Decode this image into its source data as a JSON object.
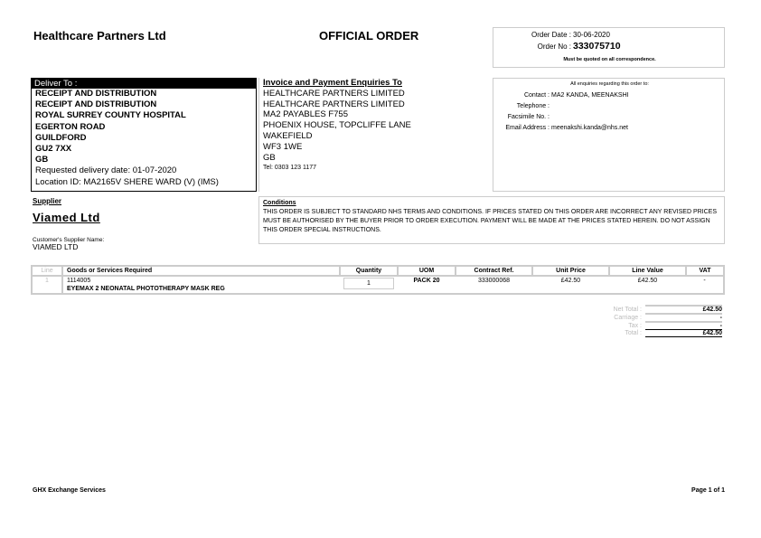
{
  "header": {
    "company": "Healthcare Partners Ltd",
    "document_title": "OFFICIAL ORDER",
    "order_date_label": "Order Date :",
    "order_date": "30-06-2020",
    "order_no_label": "Order No :",
    "order_no": "333075710",
    "quote_note": "Must be quoted on all correspondence."
  },
  "deliver_to": {
    "label": "Deliver To :",
    "lines": [
      "RECEIPT AND DISTRIBUTION",
      "RECEIPT AND DISTRIBUTION",
      "ROYAL SURREY COUNTY HOSPITAL",
      "EGERTON ROAD",
      "GUILDFORD",
      "GU2 7XX",
      "GB"
    ],
    "requested_delivery": "Requested delivery date: 01-07-2020",
    "location": "Location ID: MA2165V SHERE WARD (V) (IMS)"
  },
  "invoice": {
    "label": "Invoice and Payment Enquiries To",
    "lines": [
      "HEALTHCARE PARTNERS LIMITED",
      "HEALTHCARE PARTNERS LIMITED",
      "MA2 PAYABLES F755",
      "PHOENIX HOUSE, TOPCLIFFE LANE",
      "WAKEFIELD",
      "WF3 1WE",
      "GB"
    ],
    "tel": "Tel: 0303 123 1177"
  },
  "enquiries": {
    "heading": "All enquiries regarding this order to:",
    "contact_label": "Contact :",
    "contact": "MA2 KANDA, MEENAKSHI",
    "telephone_label": "Telephone :",
    "telephone": "",
    "fax_label": "Facsimile No. :",
    "fax": "",
    "email_label": "Email Address :",
    "email": "meenakshi.kanda@nhs.net"
  },
  "supplier": {
    "label": "Supplier",
    "name": "Viamed Ltd",
    "customer_label": "Customer's Supplier Name:",
    "customer_name": "VIAMED LTD"
  },
  "conditions": {
    "label": "Conditions",
    "text": "THIS ORDER IS SUBJECT TO STANDARD NHS TERMS AND CONDITIONS. IF PRICES STATED ON THIS ORDER ARE INCORRECT ANY REVISED PRICES MUST BE AUTHORISED BY THE BUYER PRIOR TO ORDER EXECUTION. PAYMENT WILL BE MADE AT THE PRICES STATED HEREIN. DO NOT ASSIGN THIS ORDER SPECIAL INSTRUCTIONS."
  },
  "table": {
    "headers": [
      "Line",
      "Goods or Services Required",
      "Quantity",
      "UOM",
      "Contract Ref.",
      "Unit Price",
      "Line Value",
      "VAT"
    ],
    "rows": [
      {
        "line": "1",
        "code": "1114005",
        "description": "EYEMAX 2 NEONATAL PHOTOTHERAPY MASK REG",
        "quantity": "1",
        "uom": "PACK 20",
        "contract_ref": "333000068",
        "unit_price": "£42.50",
        "line_value": "£42.50",
        "vat": "-"
      }
    ]
  },
  "totals": {
    "net_label": "Net Total :",
    "net": "£42.50",
    "carriage_label": "Carriage :",
    "carriage": "-",
    "tax_label": "Tax :",
    "tax": "-",
    "total_label": "Total :",
    "total": "£42.50"
  },
  "footer": {
    "left": "GHX Exchange Services",
    "right": "Page 1 of 1"
  }
}
